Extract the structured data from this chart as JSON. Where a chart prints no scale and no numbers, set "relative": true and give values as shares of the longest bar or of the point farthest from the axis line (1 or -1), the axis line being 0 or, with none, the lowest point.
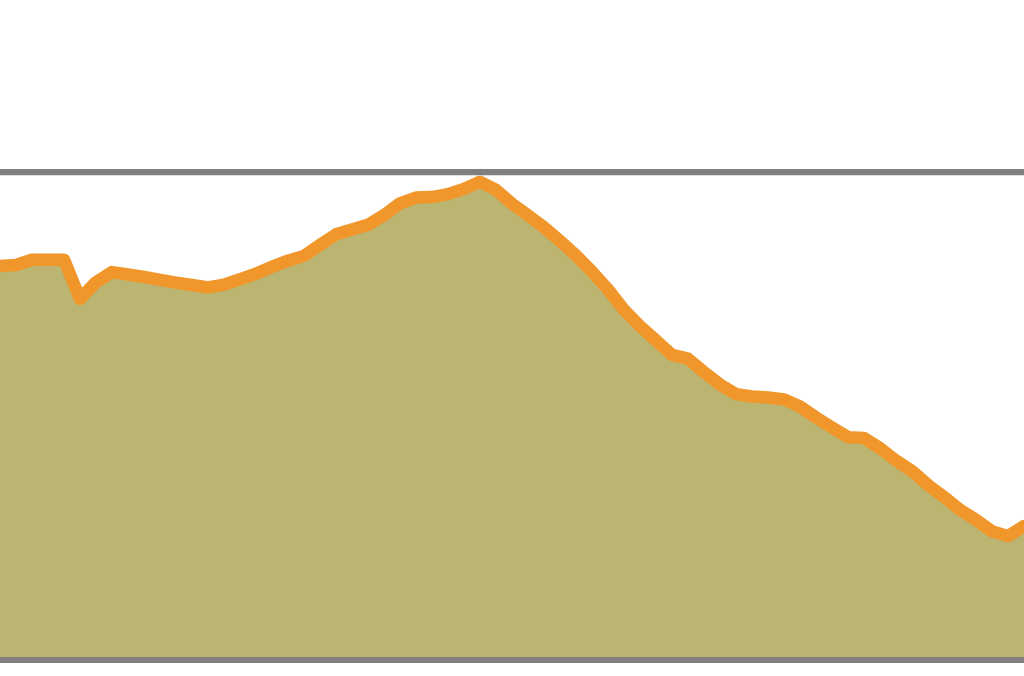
{
  "chart_data": {
    "type": "area",
    "relative": true,
    "categories": [
      null,
      null,
      null,
      null,
      null,
      null,
      null,
      null,
      null,
      null,
      null,
      null,
      null,
      null,
      null,
      null,
      null,
      null,
      null,
      null,
      null,
      null,
      null,
      null,
      null,
      null,
      null,
      null,
      null,
      null,
      null,
      null,
      null,
      null,
      null,
      null,
      null,
      null,
      null,
      null,
      null,
      null,
      null,
      null,
      null,
      null,
      null,
      null,
      null,
      null,
      null,
      null,
      null,
      null,
      null,
      null,
      null,
      null,
      null,
      null,
      null,
      null,
      null,
      null,
      null
    ],
    "series": [
      {
        "color": "#f0962a",
        "values": [
          0.824,
          0.826,
          0.837,
          0.837,
          0.837,
          0.755,
          0.79,
          0.811,
          0.806,
          0.801,
          0.795,
          0.789,
          0.784,
          0.779,
          0.785,
          0.796,
          0.808,
          0.822,
          0.835,
          0.845,
          0.868,
          0.89,
          0.9,
          0.91,
          0.93,
          0.955,
          0.967,
          0.968,
          0.974,
          0.985,
          1.0,
          0.983,
          0.954,
          0.93,
          0.905,
          0.876,
          0.846,
          0.812,
          0.775,
          0.732,
          0.698,
          0.668,
          0.638,
          0.63,
          0.602,
          0.576,
          0.556,
          0.551,
          0.549,
          0.545,
          0.53,
          0.507,
          0.486,
          0.466,
          0.464,
          0.443,
          0.417,
          0.395,
          0.366,
          0.341,
          0.314,
          0.293,
          0.269,
          0.259,
          0.28
        ]
      }
    ],
    "ref_lines": [
      {
        "axis": "y",
        "value": 1.02,
        "color": "#7f7f7f"
      }
    ],
    "grid": false,
    "legend": false
  }
}
